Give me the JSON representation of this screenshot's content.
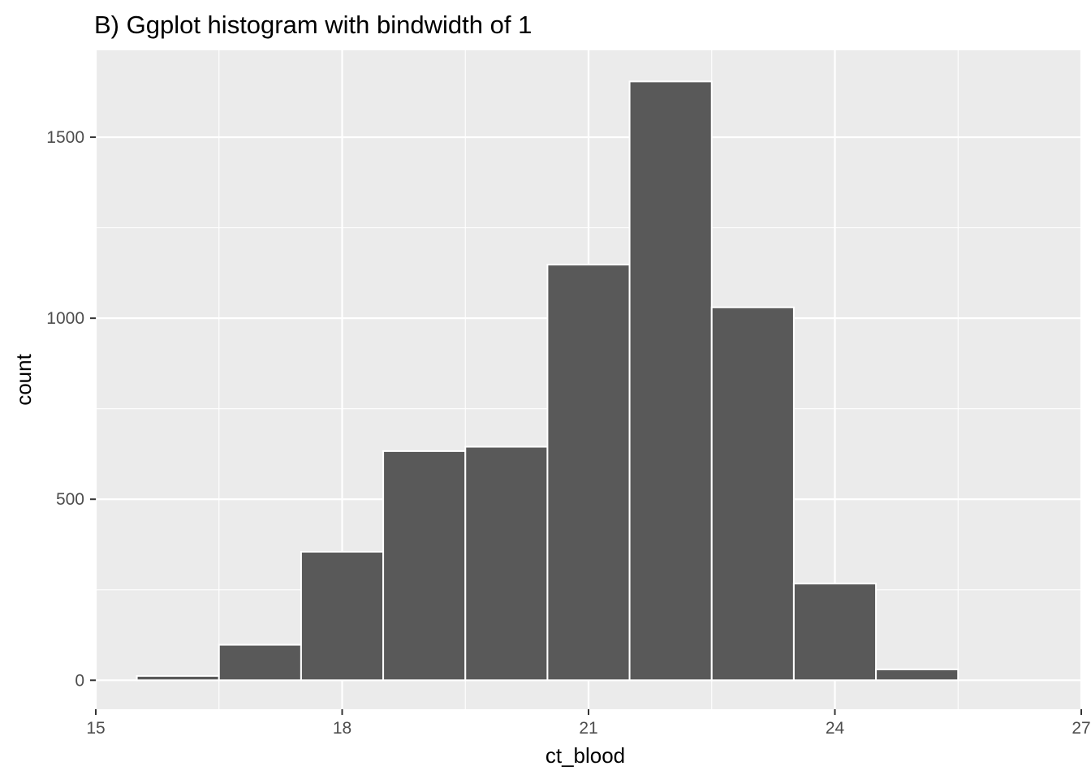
{
  "chart_data": {
    "type": "bar",
    "title": "B) Ggplot histogram with bindwidth of 1",
    "xlabel": "ct_blood",
    "ylabel": "count",
    "binwidth": 1,
    "bins": [
      {
        "x0": 15.5,
        "x1": 16.5,
        "count": 12
      },
      {
        "x0": 16.5,
        "x1": 17.5,
        "count": 98
      },
      {
        "x0": 17.5,
        "x1": 18.5,
        "count": 355
      },
      {
        "x0": 18.5,
        "x1": 19.5,
        "count": 633
      },
      {
        "x0": 19.5,
        "x1": 20.5,
        "count": 645
      },
      {
        "x0": 20.5,
        "x1": 21.5,
        "count": 1148
      },
      {
        "x0": 21.5,
        "x1": 22.5,
        "count": 1654
      },
      {
        "x0": 22.5,
        "x1": 23.5,
        "count": 1030
      },
      {
        "x0": 23.5,
        "x1": 24.5,
        "count": 267
      },
      {
        "x0": 24.5,
        "x1": 25.5,
        "count": 30
      }
    ],
    "xlim": [
      15,
      27
    ],
    "ylim": [
      -80,
      1740
    ],
    "x_ticks": [
      "15",
      "18",
      "21",
      "24",
      "27"
    ],
    "x_tick_values": [
      15,
      18,
      21,
      24,
      27
    ],
    "y_ticks": [
      "0",
      "500",
      "1000",
      "1500"
    ],
    "y_tick_values": [
      0,
      500,
      1000,
      1500
    ],
    "grid": true,
    "colors": {
      "panel": "#EBEBEB",
      "grid": "#FFFFFF",
      "bar_fill": "#595959",
      "bar_outline": "#FFFFFF",
      "tick_text": "#4D4D4D",
      "tick_mark": "#333333"
    }
  }
}
